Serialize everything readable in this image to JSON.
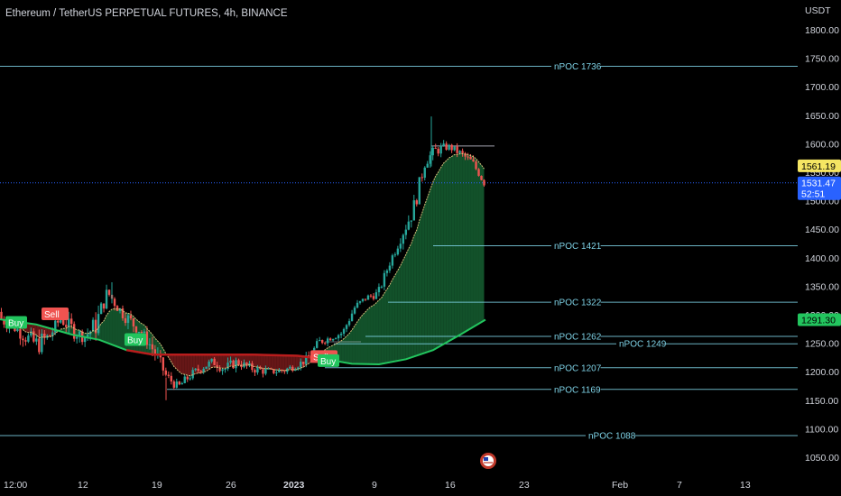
{
  "title": "Ethereum / TetherUS PERPETUAL FUTURES, 4h, BINANCE",
  "colors": {
    "background": "#000000",
    "candle_up": "#26a69a",
    "candle_down": "#ef5350",
    "ma_fast": "#d6c07a",
    "ma_slow_up": "#22c55e",
    "ma_slow_down": "#b91c1c",
    "fill_bull": "#166534",
    "fill_bear": "#7f1d1d",
    "npoc": "#7ed2e6",
    "price_line": "#2962ff"
  },
  "chart_data": {
    "type": "candlestick",
    "y_unit": "USDT",
    "ylim": [
      1030,
      1830
    ],
    "y_ticks": [
      1050,
      1100,
      1150,
      1200,
      1250,
      1300,
      1350,
      1400,
      1450,
      1500,
      1550,
      1600,
      1650,
      1700,
      1750,
      1800
    ],
    "y_tick_labels": [
      "1050.00",
      "1100.00",
      "1150.00",
      "1200.00",
      "1250.00",
      "1300.00",
      "1350.00",
      "1400.00",
      "1450.00",
      "1500.00",
      "1550.00",
      "1600.00",
      "1650.00",
      "1700.00",
      "1750.00",
      "1800.00"
    ],
    "x_tick_labels": [
      "12:00",
      "12",
      "19",
      "26",
      "2023",
      "9",
      "16",
      "23",
      "Feb",
      "7",
      "13"
    ],
    "x_ticks_bold": [
      "2023"
    ],
    "npoc_levels": [
      {
        "label": "nPOC 1736",
        "price": 1736
      },
      {
        "label": "nPOC 1421",
        "price": 1421
      },
      {
        "label": "nPOC 1322",
        "price": 1322
      },
      {
        "label": "nPOC 1262",
        "price": 1262
      },
      {
        "label": "nPOC 1249",
        "price": 1249
      },
      {
        "label": "nPOC 1207",
        "price": 1207
      },
      {
        "label": "nPOC 1169",
        "price": 1169
      },
      {
        "label": "nPOC 1088",
        "price": 1088
      }
    ],
    "price_labels": [
      {
        "text": "1561.19",
        "price": 1561.19,
        "bg": "#f5e663",
        "fg": "#000000"
      },
      {
        "text": "1531.47",
        "price": 1531.47,
        "bg": "#2962ff",
        "fg": "#ffffff",
        "sub": "52:51"
      },
      {
        "text": "1291.30",
        "price": 1291.3,
        "bg": "#22c55e",
        "fg": "#000000"
      }
    ],
    "signals": [
      {
        "text": "Buy",
        "type": "buy",
        "price": 1285
      },
      {
        "text": "Sell",
        "type": "sell",
        "price": 1300
      },
      {
        "text": "Buy",
        "type": "buy",
        "price": 1255
      },
      {
        "text": "Sell",
        "type": "sell",
        "price": 1225
      },
      {
        "text": "Buy",
        "type": "buy",
        "price": 1218
      }
    ],
    "price_path": [
      [
        1280,
        1305
      ],
      [
        1270,
        1290
      ],
      [
        1250,
        1275
      ],
      [
        1230,
        1265
      ],
      [
        1245,
        1275
      ],
      [
        1285,
        1300
      ],
      [
        1260,
        1290
      ],
      [
        1252,
        1268
      ],
      [
        1262,
        1300
      ],
      [
        1330,
        1350
      ],
      [
        1300,
        1320
      ],
      [
        1275,
        1300
      ],
      [
        1260,
        1275
      ],
      [
        1220,
        1250
      ],
      [
        1185,
        1200
      ],
      [
        1165,
        1180
      ],
      [
        1185,
        1200
      ],
      [
        1200,
        1215
      ],
      [
        1210,
        1225
      ],
      [
        1195,
        1215
      ],
      [
        1210,
        1225
      ],
      [
        1200,
        1215
      ],
      [
        1195,
        1210
      ],
      [
        1195,
        1205
      ],
      [
        1195,
        1210
      ],
      [
        1205,
        1215
      ],
      [
        1215,
        1230
      ],
      [
        1245,
        1260
      ],
      [
        1255,
        1265
      ],
      [
        1262,
        1275
      ],
      [
        1305,
        1320
      ],
      [
        1325,
        1335
      ],
      [
        1330,
        1345
      ],
      [
        1385,
        1400
      ],
      [
        1430,
        1450
      ],
      [
        1470,
        1500
      ],
      [
        1560,
        1580
      ],
      [
        1580,
        1600
      ],
      [
        1590,
        1600
      ],
      [
        1575,
        1590
      ],
      [
        1560,
        1575
      ],
      [
        1530,
        1531.47
      ]
    ]
  }
}
